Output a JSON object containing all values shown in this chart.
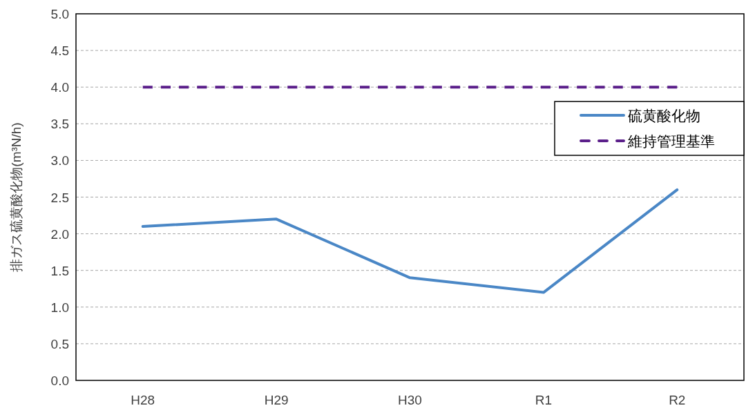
{
  "chart_data": {
    "type": "line",
    "ylabel": "排ガス硫黄酸化物(m³N/h)",
    "categories": [
      "H28",
      "H29",
      "H30",
      "R1",
      "R2"
    ],
    "series": [
      {
        "name": "硫黄酸化物",
        "color": "#4a87c6",
        "values": [
          2.1,
          2.2,
          1.4,
          1.2,
          2.6
        ],
        "line_style": "solid"
      },
      {
        "name": "維持管理基準",
        "color": "#5b1f8a",
        "values": [
          4.0,
          4.0,
          4.0,
          4.0,
          4.0
        ],
        "line_style": "dashed"
      }
    ],
    "ylim": [
      0,
      5
    ],
    "yticks": [
      {
        "value": 0,
        "label": "0.0"
      },
      {
        "value": 0.5,
        "label": "0.5"
      },
      {
        "value": 1,
        "label": "1.0"
      },
      {
        "value": 1.5,
        "label": "1.5"
      },
      {
        "value": 2,
        "label": "2.0"
      },
      {
        "value": 2.5,
        "label": "2.5"
      },
      {
        "value": 3,
        "label": "3.0"
      },
      {
        "value": 3.5,
        "label": "3.5"
      },
      {
        "value": 4,
        "label": "4.0"
      },
      {
        "value": 4.5,
        "label": "4.5"
      },
      {
        "value": 5,
        "label": "5.0"
      }
    ],
    "grid": "y",
    "legend": "top right"
  }
}
